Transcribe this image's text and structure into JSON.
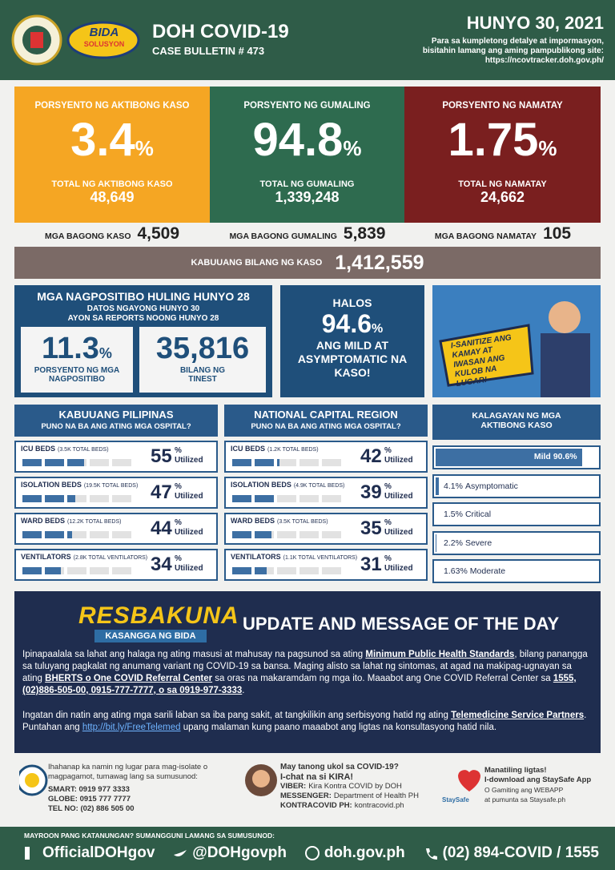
{
  "header": {
    "logo": "BIDA",
    "logo_sub": "SOLUSYON",
    "title": "DOH COVID-19",
    "bulletin": "CASE BULLETIN # 473",
    "date": "HUNYO 30, 2021",
    "note_lines": [
      "Para sa kumpletong detalye at impormasyon,",
      "bisitahin lamang ang aming pampublikong site:",
      "https://ncovtracker.doh.gov.ph/"
    ]
  },
  "stats": [
    {
      "label": "PORSYENTO NG AKTIBONG KASO",
      "value": "3.4",
      "unit": "%",
      "total_label": "TOTAL NG AKTIBONG KASO",
      "total": "48,649"
    },
    {
      "label": "PORSYENTO NG GUMALING",
      "value": "94.8",
      "unit": "%",
      "total_label": "TOTAL NG GUMALING",
      "total": "1,339,248"
    },
    {
      "label": "PORSYENTO NG NAMATAY",
      "value": "1.75",
      "unit": "%",
      "total_label": "TOTAL NG NAMATAY",
      "total": "24,662"
    }
  ],
  "new_counts": [
    {
      "label": "MGA BAGONG KASO",
      "value": "4,509"
    },
    {
      "label": "MGA BAGONG GUMALING",
      "value": "5,839"
    },
    {
      "label": "MGA BAGONG NAMATAY",
      "value": "105"
    }
  ],
  "total": {
    "label": "KABUUANG BILANG NG KASO",
    "value": "1,412,559"
  },
  "positivity": {
    "title": "MGA NAGPOSITIBO HULING HUNYO 28",
    "sub_lines": [
      "DATOS NGAYONG HUNYO 30",
      "AYON SA REPORTS NOONG HUNYO 28"
    ],
    "rate": "11.3",
    "unit": "%",
    "rate_label": "PORSYENTO NG MGA NAGPOSITIBO",
    "tested": "35,816",
    "tested_label": "BILANG NG TINEST"
  },
  "mild": {
    "lead": "HALOS",
    "value": "94.6",
    "unit": "%",
    "text": "ANG MILD AT ASYMPTOMATIC NA KASO!"
  },
  "poster": {
    "text": "I-SANITIZE ANG KAMAY AT IWASAN ANG KULOB NA LUGAR!"
  },
  "hospitals": {
    "unit": "%",
    "utilized": "Utilized",
    "regions": [
      {
        "title": "KABUUANG PILIPINAS",
        "subtitle": "PUNO NA BA ANG ATING MGA OSPITAL?",
        "rows": [
          {
            "label": "ICU BEDS",
            "capacity": "(3.5K TOTAL BEDS)",
            "value": 55
          },
          {
            "label": "ISOLATION BEDS",
            "capacity": "(19.5K TOTAL BEDS)",
            "value": 47
          },
          {
            "label": "WARD BEDS",
            "capacity": "(12.2K TOTAL BEDS)",
            "value": 44
          },
          {
            "label": "VENTILATORS",
            "capacity": "(2.8K TOTAL VENTILATORS)",
            "value": 34
          }
        ]
      },
      {
        "title": "NATIONAL CAPITAL REGION",
        "subtitle": "PUNO NA BA ANG ATING MGA OSPITAL?",
        "rows": [
          {
            "label": "ICU BEDS",
            "capacity": "(1.2K TOTAL BEDS)",
            "value": 42
          },
          {
            "label": "ISOLATION BEDS",
            "capacity": "(4.9K TOTAL BEDS)",
            "value": 39
          },
          {
            "label": "WARD BEDS",
            "capacity": "(3.5K TOTAL BEDS)",
            "value": 35
          },
          {
            "label": "VENTILATORS",
            "capacity": "(1.1K TOTAL VENTILATORS)",
            "value": 31
          }
        ]
      }
    ]
  },
  "status": {
    "title": "KALAGAYAN NG MGA AKTIBONG KASO",
    "unit": "%",
    "items": [
      {
        "label": "Mild",
        "value": 90.6
      },
      {
        "label": "Asymptomatic",
        "value": 4.1
      },
      {
        "label": "Critical",
        "value": 1.5
      },
      {
        "label": "Severe",
        "value": 2.2
      },
      {
        "label": "Moderate",
        "value": 1.63
      }
    ]
  },
  "update": {
    "logo": "RESBAKUNA",
    "logo_sub": "KASANGGA NG BIDA",
    "title": "UPDATE AND MESSAGE OF THE DAY",
    "paragraphs": [
      [
        {
          "text": "Ipinapaalala sa lahat ang halaga ng ating masusi at mahusay na pagsunod sa ating "
        },
        {
          "text": "Minimum Public Health Standards",
          "em": true
        },
        {
          "text": ", bilang panangga sa tuluyang pagkalat ng anumang variant ng COVID-19 sa bansa. Maging alisto sa lahat ng sintomas, at agad na makipag-ugnayan sa ating "
        },
        {
          "text": "BHERTS o One COVID Referral Center",
          "em": true
        },
        {
          "text": " sa oras na makaramdam ng mga ito. Maaabot ang One COVID Referral Center sa "
        },
        {
          "text": "1555, (02)886-505-00, 0915-777-7777, o sa 0919-977-3333",
          "em": true
        },
        {
          "text": "."
        }
      ],
      [
        {
          "text": "Ingatan din natin ang ating mga sarili laban sa iba pang sakit, at tangkilikin ang serbisyong hatid ng ating "
        },
        {
          "text": "Telemedicine Service Partners",
          "em": true
        },
        {
          "text": ". Puntahan ang "
        },
        {
          "text": "http://bit.ly/FreeTelemed",
          "link": true
        },
        {
          "text": " upang malaman kung paano maaabot ang ligtas na konsultasyong hatid nila."
        }
      ]
    ]
  },
  "contacts": {
    "isolation": {
      "text": "Ihahanap ka namin ng lugar para mag-isolate o magpagamot, tumawag lang sa sumusunod:",
      "lines": [
        "SMART: 0919 977 3333",
        "GLOBE: 0915 777 7777",
        "TEL NO: (02) 886 505 00"
      ]
    },
    "kira": {
      "lines": [
        "May tanong ukol sa COVID-19?",
        "I-chat na si KIRA!"
      ],
      "channels": [
        {
          "name": "VIBER:",
          "value": "Kira Kontra COVID by DOH"
        },
        {
          "name": "MESSENGER:",
          "value": "Department of Health PH"
        },
        {
          "name": "KONTRACOVID PH:",
          "value": "kontracovid.ph"
        }
      ]
    },
    "staysafe": {
      "logo": "StaySafe",
      "lines": [
        "Manatiling ligtas!",
        "I-download ang StaySafe App",
        "O Gamiting ang WEBAPP",
        "at pumunta sa Staysafe.ph"
      ]
    }
  },
  "footer": {
    "note": "MAYROON PANG KATANUNGAN? SUMANGGUNI LAMANG SA SUMUSUNOD:",
    "items": [
      "OfficialDOHgov",
      "@DOHgovph",
      "doh.gov.ph",
      "(02) 894-COVID / 1555"
    ]
  }
}
